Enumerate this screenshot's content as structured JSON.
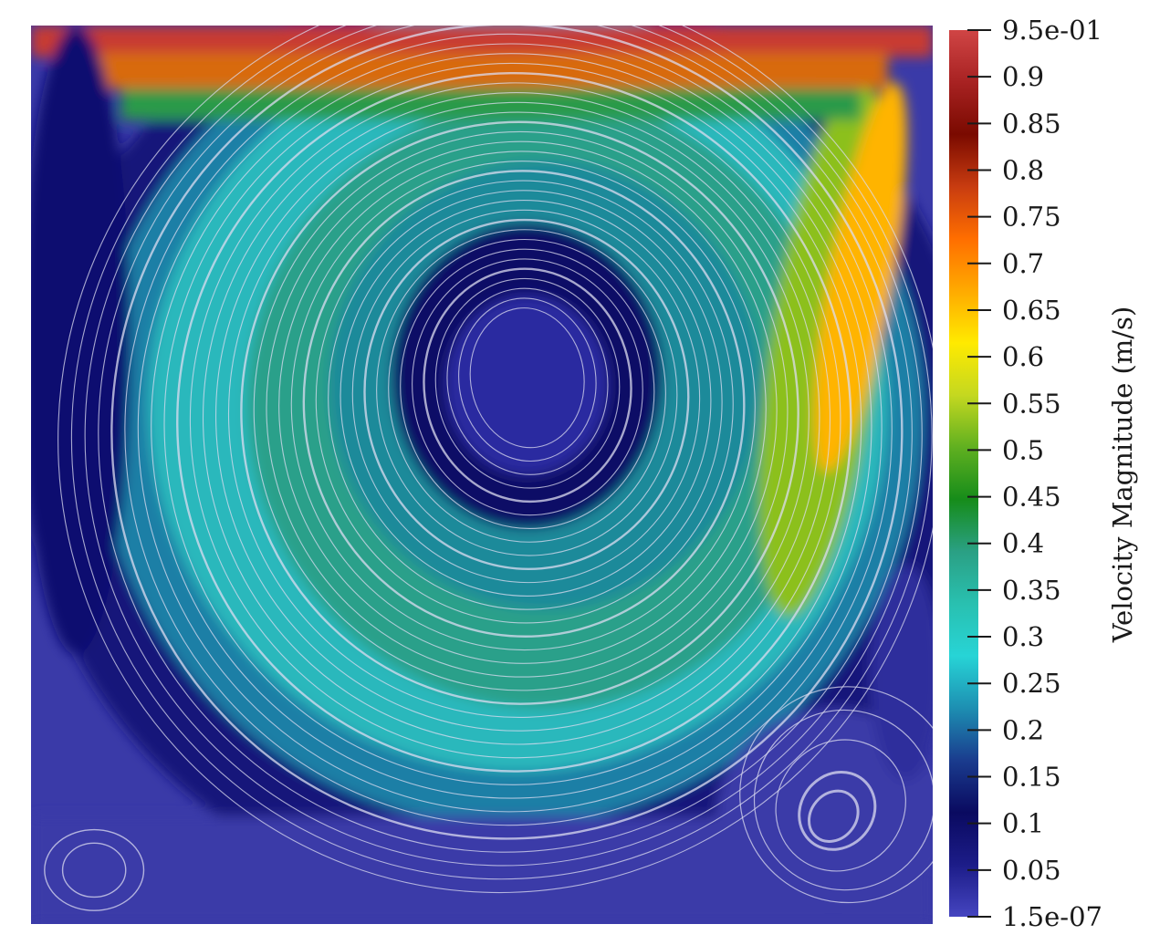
{
  "chart_data": {
    "type": "heatmap",
    "title": "",
    "colorbar": {
      "title": "Velocity Magnitude (m/s)",
      "range": [
        1.5e-07,
        0.95
      ],
      "ticks": [
        {
          "value": 0.95,
          "label": "9.5e-01"
        },
        {
          "value": 0.9,
          "label": "0.9"
        },
        {
          "value": 0.85,
          "label": "0.85"
        },
        {
          "value": 0.8,
          "label": "0.8"
        },
        {
          "value": 0.75,
          "label": "0.75"
        },
        {
          "value": 0.7,
          "label": "0.7"
        },
        {
          "value": 0.65,
          "label": "0.65"
        },
        {
          "value": 0.6,
          "label": "0.6"
        },
        {
          "value": 0.55,
          "label": "0.55"
        },
        {
          "value": 0.5,
          "label": "0.5"
        },
        {
          "value": 0.45,
          "label": "0.45"
        },
        {
          "value": 0.4,
          "label": "0.4"
        },
        {
          "value": 0.35,
          "label": "0.35"
        },
        {
          "value": 0.3,
          "label": "0.3"
        },
        {
          "value": 0.25,
          "label": "0.25"
        },
        {
          "value": 0.2,
          "label": "0.2"
        },
        {
          "value": 0.15,
          "label": "0.15"
        },
        {
          "value": 0.1,
          "label": "0.1"
        },
        {
          "value": 0.05,
          "label": "0.05"
        },
        {
          "value": 1.5e-07,
          "label": "1.5e-07"
        }
      ],
      "colormap": [
        "#4545c0",
        "#1c1c88",
        "#0a0a60",
        "#1a3c8e",
        "#1d8fb2",
        "#27d4d6",
        "#29c0b0",
        "#2aa084",
        "#168c1a",
        "#60b020",
        "#c4d820",
        "#ffea00",
        "#ffaa00",
        "#ff6e00",
        "#c83c10",
        "#7a0a00",
        "#a82222",
        "#d04545"
      ]
    },
    "field": {
      "description_free": true,
      "vortices": [
        {
          "name": "primary",
          "center": [
            0.55,
            0.4
          ]
        },
        {
          "name": "bottom-right",
          "center": [
            0.89,
            0.88
          ]
        },
        {
          "name": "bottom-left",
          "center": [
            0.07,
            0.94
          ]
        }
      ],
      "lid_speed": 0.95
    },
    "grid": false
  }
}
